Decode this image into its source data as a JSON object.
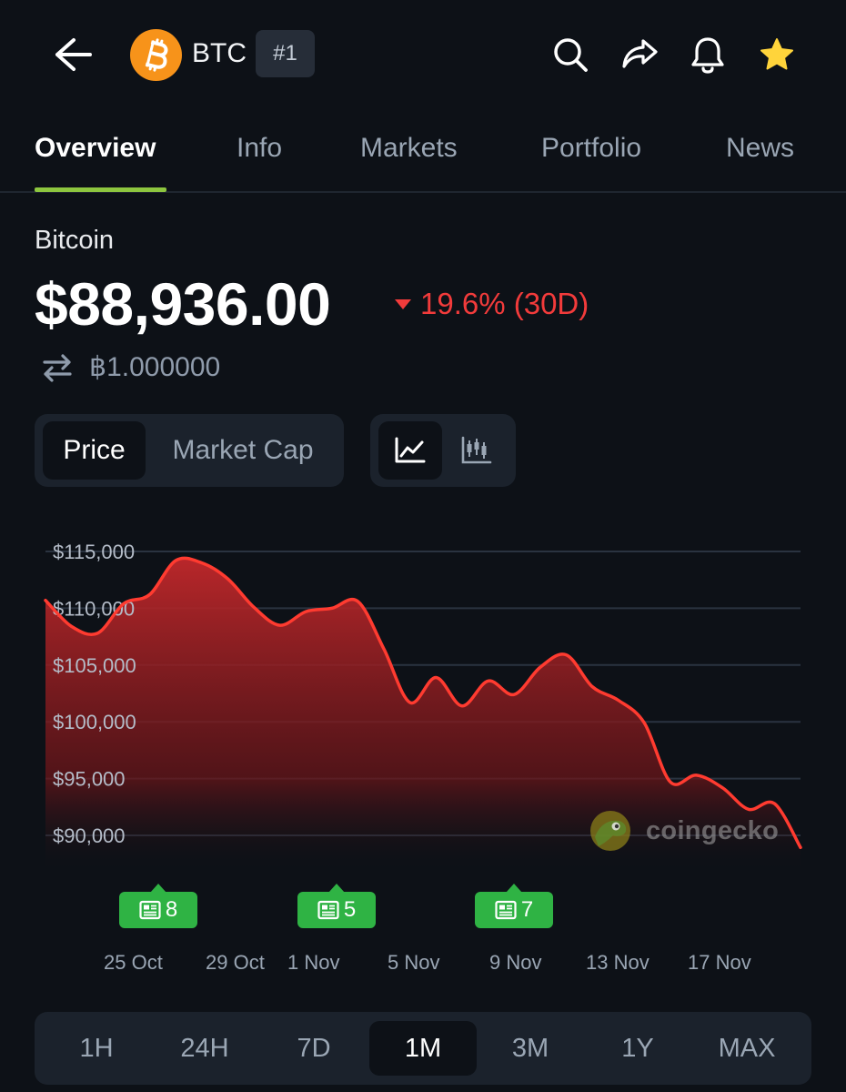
{
  "header": {
    "symbol": "BTC",
    "rank": "#1",
    "icons": [
      "back-arrow-icon",
      "search-icon",
      "share-icon",
      "bell-icon",
      "star-icon"
    ],
    "colors": {
      "bitcoin_orange": "#f7931a",
      "star": "#ffd43b"
    }
  },
  "tabs": [
    {
      "label": "Overview",
      "active": true
    },
    {
      "label": "Info"
    },
    {
      "label": "Markets"
    },
    {
      "label": "Portfolio"
    },
    {
      "label": "News"
    }
  ],
  "coin": {
    "name": "Bitcoin",
    "price": "$88,936.00",
    "change": "19.6% (30D)",
    "change_direction": "down",
    "change_color": "#f23b3b",
    "btc_value": "฿1.000000"
  },
  "chart_toggle": {
    "price": "Price",
    "market_cap": "Market Cap",
    "active": "Price",
    "view_icons": [
      "line-chart-icon",
      "candlestick-icon"
    ]
  },
  "chart_data": {
    "type": "area",
    "y_ticks": [
      "$115,000",
      "$110,000",
      "$105,000",
      "$100,000",
      "$95,000",
      "$90,000"
    ],
    "ylim": [
      88000,
      116000
    ],
    "x_ticks": [
      "25 Oct",
      "29 Oct",
      "1 Nov",
      "5 Nov",
      "9 Nov",
      "13 Nov",
      "17 Nov"
    ],
    "series": [
      {
        "color": "#ff3b30",
        "points": [
          [
            "2025-10-22",
            110700
          ],
          [
            "2025-10-23",
            108400
          ],
          [
            "2025-10-24",
            107800
          ],
          [
            "2025-10-25",
            110400
          ],
          [
            "2025-10-26",
            111200
          ],
          [
            "2025-10-27",
            114200
          ],
          [
            "2025-10-28",
            114000
          ],
          [
            "2025-10-29",
            112600
          ],
          [
            "2025-10-30",
            110100
          ],
          [
            "2025-10-31",
            108500
          ],
          [
            "2025-11-01",
            109700
          ],
          [
            "2025-11-02",
            110000
          ],
          [
            "2025-11-03",
            110600
          ],
          [
            "2025-11-04",
            106400
          ],
          [
            "2025-11-05",
            101700
          ],
          [
            "2025-11-06",
            103900
          ],
          [
            "2025-11-07",
            101400
          ],
          [
            "2025-11-08",
            103600
          ],
          [
            "2025-11-09",
            102400
          ],
          [
            "2025-11-10",
            104800
          ],
          [
            "2025-11-11",
            105900
          ],
          [
            "2025-11-12",
            103100
          ],
          [
            "2025-11-13",
            101900
          ],
          [
            "2025-11-14",
            99900
          ],
          [
            "2025-11-15",
            94700
          ],
          [
            "2025-11-16",
            95300
          ],
          [
            "2025-11-17",
            94200
          ],
          [
            "2025-11-18",
            92300
          ],
          [
            "2025-11-19",
            92800
          ],
          [
            "2025-11-20",
            88936
          ]
        ]
      }
    ],
    "grid": true
  },
  "news_badges": [
    {
      "count": "8"
    },
    {
      "count": "5"
    },
    {
      "count": "7"
    }
  ],
  "watermark": "coingecko",
  "ranges": [
    {
      "label": "1H"
    },
    {
      "label": "24H"
    },
    {
      "label": "7D"
    },
    {
      "label": "1M",
      "active": true
    },
    {
      "label": "3M"
    },
    {
      "label": "1Y"
    },
    {
      "label": "MAX"
    }
  ]
}
